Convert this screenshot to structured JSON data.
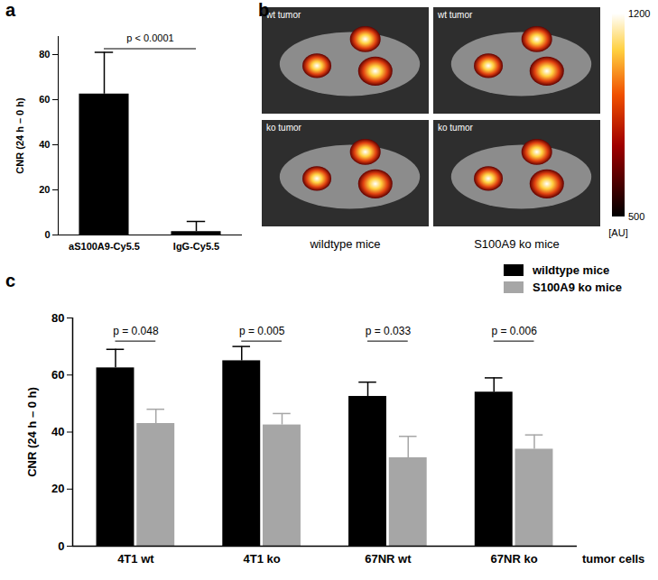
{
  "chart_data": [
    {
      "panel_label": "a",
      "type": "bar",
      "categories": [
        "aS100A9-Cy5.5",
        "IgG-Cy5.5"
      ],
      "values": [
        62.5,
        1.5
      ],
      "errors": [
        18.5,
        4.5
      ],
      "color": "#000000",
      "ylabel": "CNR (24 h – 0 h)",
      "ylim": [
        0,
        88
      ],
      "yticks": [
        0,
        20,
        40,
        60,
        80
      ],
      "annotations": [
        "p < 0.0001"
      ]
    },
    {
      "panel_label": "b",
      "type": "image",
      "images": [
        {
          "label": "wt tumor"
        },
        {
          "label": "wt tumor"
        },
        {
          "label": "ko tumor"
        },
        {
          "label": "ko tumor"
        }
      ],
      "xlabels": [
        "wildtype mice",
        "S100A9 ko mice"
      ],
      "colorbar": {
        "lim": [
          500,
          1200
        ],
        "ticks": [
          500,
          1200
        ],
        "label": "[AU]"
      }
    },
    {
      "panel_label": "c",
      "type": "bar",
      "categories": [
        "4T1 wt",
        "4T1 ko",
        "67NR wt",
        "67NR ko"
      ],
      "xlabel": "tumor cells",
      "ylabel": "CNR (24 h – 0 h)",
      "ylim": [
        0,
        80
      ],
      "yticks": [
        0,
        20,
        40,
        60,
        80
      ],
      "legend": "top-right",
      "series": [
        {
          "name": "wildtype mice",
          "color": "#000000",
          "values": [
            62.5,
            65,
            52.5,
            54
          ],
          "errors": [
            6.5,
            5,
            5,
            5
          ]
        },
        {
          "name": "S100A9 ko mice",
          "color": "#a6a6a6",
          "values": [
            43,
            42.5,
            31,
            34
          ],
          "errors": [
            5,
            4,
            7.5,
            5
          ]
        }
      ],
      "annotations": [
        "p = 0.048",
        "p = 0.005",
        "p = 0.033",
        "p = 0.006"
      ]
    }
  ]
}
